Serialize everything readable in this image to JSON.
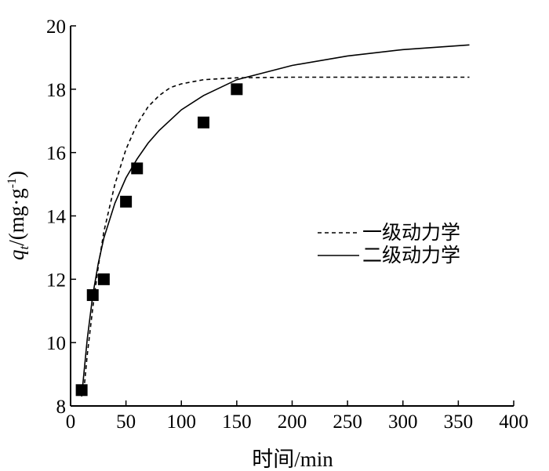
{
  "chart_data": {
    "type": "scatter",
    "xlabel": "时间/min",
    "ylabel": "q",
    "ylabel_subscript": "t",
    "ylabel_unit": "/(mg·g",
    "ylabel_superscript": "-1",
    "ylabel_close": ")",
    "xlim": [
      0,
      400
    ],
    "ylim": [
      8,
      20
    ],
    "xticks": [
      0,
      50,
      100,
      150,
      200,
      250,
      300,
      350,
      400
    ],
    "yticks": [
      8,
      10,
      12,
      14,
      16,
      18,
      20
    ],
    "grid": false,
    "legend_position": "right",
    "observed": {
      "marker": "filled-square",
      "x": [
        10,
        20,
        30,
        50,
        60,
        120,
        150
      ],
      "y": [
        8.5,
        11.5,
        12.0,
        14.45,
        15.5,
        16.95,
        18.0
      ]
    },
    "series": [
      {
        "name": "一级动力学",
        "style": "dashed",
        "x": [
          12,
          15,
          20,
          25,
          30,
          40,
          50,
          60,
          70,
          80,
          90,
          100,
          120,
          150,
          200,
          250,
          300,
          360
        ],
        "y": [
          8.5,
          9.6,
          11.1,
          12.4,
          13.5,
          15.0,
          16.1,
          16.9,
          17.45,
          17.8,
          18.05,
          18.17,
          18.3,
          18.36,
          18.38,
          18.38,
          18.38,
          18.38
        ]
      },
      {
        "name": "二级动力学",
        "style": "solid",
        "x": [
          10,
          15,
          20,
          25,
          30,
          40,
          50,
          60,
          70,
          80,
          100,
          120,
          150,
          200,
          250,
          300,
          360
        ],
        "y": [
          8.3,
          10.1,
          11.5,
          12.5,
          13.3,
          14.4,
          15.2,
          15.8,
          16.3,
          16.7,
          17.35,
          17.8,
          18.3,
          18.75,
          19.05,
          19.25,
          19.4
        ]
      }
    ]
  }
}
